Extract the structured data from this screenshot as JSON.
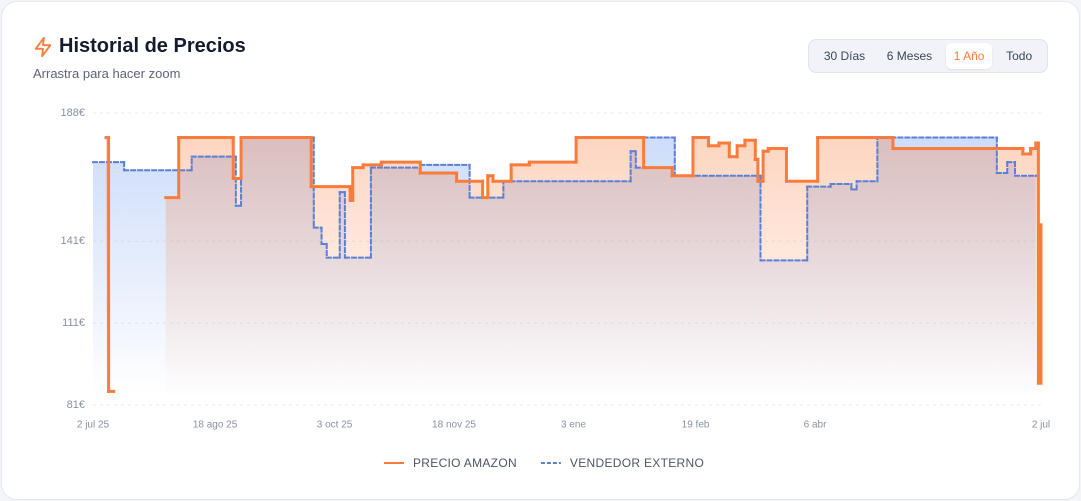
{
  "header": {
    "title": "Historial de Precios",
    "subtitle": "Arrastra para hacer zoom"
  },
  "range_buttons": {
    "options": [
      "30 Días",
      "6 Meses",
      "1 Año",
      "Todo"
    ],
    "active": 2
  },
  "chart_data": {
    "type": "line",
    "interpolation": "step",
    "grid": true,
    "legend": "bottom",
    "xlim": [
      "2025-07-02",
      "2026-07-02"
    ],
    "xticks": [
      {
        "value": "2025-07-02",
        "label": "2 jul 25"
      },
      {
        "value": "2025-08-18",
        "label": "18 ago 25"
      },
      {
        "value": "2025-10-03",
        "label": "3 oct 25"
      },
      {
        "value": "2025-11-18",
        "label": "18 nov 25"
      },
      {
        "value": "2026-01-03",
        "label": "3 ene"
      },
      {
        "value": "2026-02-19",
        "label": "19 feb"
      },
      {
        "value": "2026-04-06",
        "label": "6 abr"
      },
      {
        "value": "2026-07-02",
        "label": "2 jul"
      }
    ],
    "ylim": [
      81,
      188
    ],
    "yticks": [
      {
        "value": 81,
        "label": "81€"
      },
      {
        "value": 111,
        "label": "111€"
      },
      {
        "value": 141,
        "label": "141€"
      },
      {
        "value": 188,
        "label": "188€"
      }
    ],
    "series": [
      {
        "name": "VENDEDOR EXTERNO",
        "color": "#5b7fd6",
        "dash": true,
        "x": [
          "2025-07-02",
          "2025-07-14",
          "2025-08-09",
          "2025-08-26",
          "2025-08-28",
          "2025-09-25",
          "2025-09-28",
          "2025-09-30",
          "2025-10-05",
          "2025-10-07",
          "2025-10-17",
          "2025-11-05",
          "2025-11-24",
          "2025-12-07",
          "2026-01-25",
          "2026-01-27",
          "2026-01-30",
          "2026-02-11",
          "2026-03-16",
          "2026-04-03",
          "2026-04-12",
          "2026-04-20",
          "2026-04-22",
          "2026-04-30",
          "2026-06-15",
          "2026-06-19",
          "2026-06-22",
          "2026-06-30"
        ],
        "values": [
          170,
          167,
          172,
          154,
          179,
          146,
          140,
          135,
          159,
          135,
          168,
          169,
          157,
          163,
          174,
          168,
          179,
          165,
          134,
          161,
          162,
          160,
          163,
          179,
          166,
          170,
          165,
          165
        ]
      },
      {
        "name": "PRECIO AMAZON",
        "color": "#f97c3c",
        "dash": false,
        "x": [
          "2025-07-07",
          "2025-07-08",
          "2025-07-10",
          "2025-07-30",
          "2025-08-04",
          "2025-08-25",
          "2025-08-28",
          "2025-09-24",
          "2025-10-09",
          "2025-10-10",
          "2025-10-14",
          "2025-10-21",
          "2025-11-05",
          "2025-11-19",
          "2025-11-29",
          "2025-12-01",
          "2025-12-03",
          "2025-12-10",
          "2025-12-17",
          "2026-01-04",
          "2026-01-30",
          "2026-02-10",
          "2026-02-18",
          "2026-02-24",
          "2026-02-28",
          "2026-03-04",
          "2026-03-07",
          "2026-03-10",
          "2026-03-14",
          "2026-03-15",
          "2026-03-17",
          "2026-03-19",
          "2026-03-26",
          "2026-04-07",
          "2026-05-06",
          "2026-06-25",
          "2026-06-28",
          "2026-06-30",
          "2026-07-01",
          "2026-07-02"
        ],
        "values": [
          179,
          86,
          null,
          157,
          179,
          164,
          179,
          161,
          156,
          168,
          169,
          170,
          166,
          163,
          157,
          165,
          163,
          169,
          170,
          179,
          168,
          165,
          179,
          176,
          177,
          172,
          176,
          178,
          171,
          163,
          174,
          175,
          163,
          179,
          175,
          173,
          175,
          177,
          89,
          147
        ]
      }
    ]
  }
}
